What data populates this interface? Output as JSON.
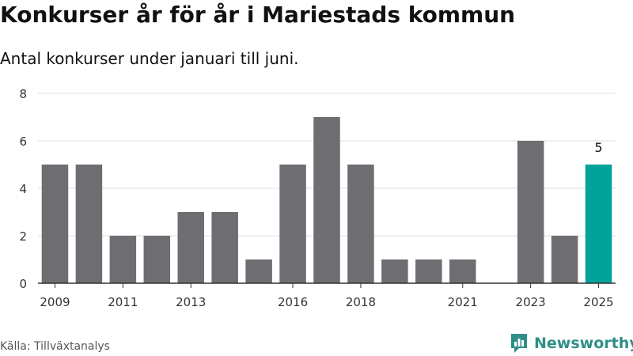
{
  "title": "Konkurser år för år i Mariestads kommun",
  "subtitle": "Antal konkurser under januari till juni.",
  "source": "Källa: Tillväxtanalys",
  "brand": {
    "name": "Newsworthy",
    "icon": "newsworthy-logo-icon",
    "color": "#2f8f87"
  },
  "colors": {
    "bar": "#6e6d72",
    "highlight": "#00a39a",
    "grid": "#dddddd",
    "axis": "#333333"
  },
  "chart_data": {
    "type": "bar",
    "categories": [
      "2009",
      "2010",
      "2011",
      "2012",
      "2013",
      "2014",
      "2015",
      "2016",
      "2017",
      "2018",
      "2019",
      "2020",
      "2021",
      "2022",
      "2023",
      "2024",
      "2025"
    ],
    "values": [
      5,
      5,
      2,
      2,
      3,
      3,
      1,
      5,
      7,
      5,
      1,
      1,
      1,
      0,
      6,
      2,
      5
    ],
    "x_tick_labels": [
      "2009",
      "2011",
      "2013",
      "2016",
      "2018",
      "2021",
      "2023",
      "2025"
    ],
    "y_ticks": [
      0,
      2,
      4,
      6,
      8
    ],
    "ylim": [
      0,
      8
    ],
    "highlight": {
      "category": "2025",
      "label": "5"
    },
    "grid": true,
    "legend": "none"
  }
}
